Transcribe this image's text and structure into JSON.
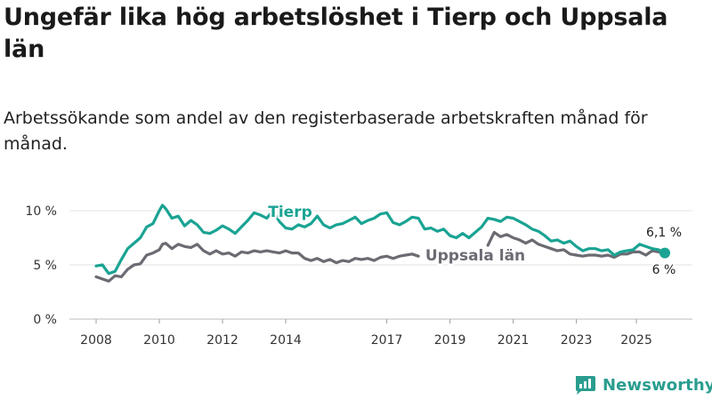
{
  "title": "Ungefär lika hög arbetslöshet i Tierp och Uppsala län",
  "subtitle": "Arbetssökande som andel av den registerbaserade arbetskraften månad för månad.",
  "brand": {
    "name": "Newsworthy",
    "color": "#2a9d8f"
  },
  "chart_data": {
    "type": "line",
    "title": "Ungefär lika hög arbetslöshet i Tierp och Uppsala län",
    "xlabel": "",
    "ylabel": "",
    "x_ticks": [
      "2008",
      "2010",
      "2012",
      "2014",
      "2017",
      "2019",
      "2021",
      "2023",
      "2025"
    ],
    "x_tick_values": [
      2008,
      2010,
      2012,
      2014,
      2017.2,
      2019.2,
      2021.2,
      2023.2,
      2025.1
    ],
    "y_ticks": [
      "0 %",
      "5 %",
      "10 %"
    ],
    "y_tick_values": [
      0,
      5,
      10
    ],
    "xlim": [
      2008,
      2026
    ],
    "ylim": [
      0,
      10
    ],
    "series": [
      {
        "name": "Tierp",
        "color": "#1aa393",
        "end_label": "6,1 %",
        "points": [
          [
            2008.0,
            4.9
          ],
          [
            2008.2,
            5.0
          ],
          [
            2008.4,
            4.2
          ],
          [
            2008.6,
            4.4
          ],
          [
            2008.8,
            5.5
          ],
          [
            2009.0,
            6.5
          ],
          [
            2009.2,
            7.0
          ],
          [
            2009.4,
            7.5
          ],
          [
            2009.6,
            8.5
          ],
          [
            2009.8,
            8.8
          ],
          [
            2010.0,
            10.0
          ],
          [
            2010.1,
            10.5
          ],
          [
            2010.2,
            10.2
          ],
          [
            2010.4,
            9.3
          ],
          [
            2010.6,
            9.5
          ],
          [
            2010.8,
            8.6
          ],
          [
            2011.0,
            9.1
          ],
          [
            2011.2,
            8.7
          ],
          [
            2011.4,
            8.0
          ],
          [
            2011.6,
            7.9
          ],
          [
            2011.8,
            8.2
          ],
          [
            2012.0,
            8.6
          ],
          [
            2012.2,
            8.3
          ],
          [
            2012.4,
            7.9
          ],
          [
            2012.6,
            8.5
          ],
          [
            2012.8,
            9.1
          ],
          [
            2013.0,
            9.8
          ],
          [
            2013.2,
            9.6
          ],
          [
            2013.4,
            9.3
          ],
          [
            2013.6,
            10.0
          ],
          [
            2013.8,
            9.0
          ],
          [
            2014.0,
            8.4
          ],
          [
            2014.2,
            8.3
          ],
          [
            2014.4,
            8.7
          ],
          [
            2014.6,
            8.5
          ],
          [
            2014.8,
            8.8
          ],
          [
            2015.0,
            9.5
          ],
          [
            2015.2,
            8.7
          ],
          [
            2015.4,
            8.4
          ],
          [
            2015.6,
            8.7
          ],
          [
            2015.8,
            8.8
          ],
          [
            2016.0,
            9.1
          ],
          [
            2016.2,
            9.4
          ],
          [
            2016.4,
            8.8
          ],
          [
            2016.6,
            9.1
          ],
          [
            2016.8,
            9.3
          ],
          [
            2017.0,
            9.7
          ],
          [
            2017.2,
            9.8
          ],
          [
            2017.4,
            8.9
          ],
          [
            2017.6,
            8.7
          ],
          [
            2017.8,
            9.0
          ],
          [
            2018.0,
            9.4
          ],
          [
            2018.2,
            9.3
          ],
          [
            2018.4,
            8.3
          ],
          [
            2018.6,
            8.4
          ],
          [
            2018.8,
            8.1
          ],
          [
            2019.0,
            8.3
          ],
          [
            2019.2,
            7.7
          ],
          [
            2019.4,
            7.5
          ],
          [
            2019.6,
            7.9
          ],
          [
            2019.8,
            7.5
          ],
          [
            2020.0,
            8.0
          ],
          [
            2020.2,
            8.5
          ],
          [
            2020.4,
            9.3
          ],
          [
            2020.6,
            9.2
          ],
          [
            2020.8,
            9.0
          ],
          [
            2021.0,
            9.4
          ],
          [
            2021.2,
            9.3
          ],
          [
            2021.4,
            9.0
          ],
          [
            2021.6,
            8.7
          ],
          [
            2021.8,
            8.3
          ],
          [
            2022.0,
            8.1
          ],
          [
            2022.2,
            7.7
          ],
          [
            2022.4,
            7.2
          ],
          [
            2022.6,
            7.3
          ],
          [
            2022.8,
            7.0
          ],
          [
            2023.0,
            7.2
          ],
          [
            2023.2,
            6.7
          ],
          [
            2023.4,
            6.3
          ],
          [
            2023.6,
            6.5
          ],
          [
            2023.8,
            6.5
          ],
          [
            2024.0,
            6.3
          ],
          [
            2024.2,
            6.4
          ],
          [
            2024.4,
            5.9
          ],
          [
            2024.6,
            6.2
          ],
          [
            2024.8,
            6.3
          ],
          [
            2025.0,
            6.4
          ],
          [
            2025.2,
            6.9
          ],
          [
            2025.4,
            6.7
          ],
          [
            2025.6,
            6.5
          ],
          [
            2025.8,
            6.4
          ],
          [
            2026.0,
            6.1
          ]
        ]
      },
      {
        "name": "Uppsala län",
        "color": "#6b6b73",
        "end_label": "6 %",
        "points": [
          [
            2008.0,
            3.9
          ],
          [
            2008.2,
            3.7
          ],
          [
            2008.4,
            3.5
          ],
          [
            2008.6,
            4.0
          ],
          [
            2008.8,
            3.9
          ],
          [
            2009.0,
            4.6
          ],
          [
            2009.2,
            5.0
          ],
          [
            2009.4,
            5.1
          ],
          [
            2009.6,
            5.9
          ],
          [
            2009.8,
            6.1
          ],
          [
            2010.0,
            6.4
          ],
          [
            2010.1,
            6.9
          ],
          [
            2010.2,
            7.0
          ],
          [
            2010.4,
            6.5
          ],
          [
            2010.6,
            6.9
          ],
          [
            2010.8,
            6.7
          ],
          [
            2011.0,
            6.6
          ],
          [
            2011.2,
            6.9
          ],
          [
            2011.4,
            6.3
          ],
          [
            2011.6,
            6.0
          ],
          [
            2011.8,
            6.3
          ],
          [
            2012.0,
            6.0
          ],
          [
            2012.2,
            6.1
          ],
          [
            2012.4,
            5.8
          ],
          [
            2012.6,
            6.2
          ],
          [
            2012.8,
            6.1
          ],
          [
            2013.0,
            6.3
          ],
          [
            2013.2,
            6.2
          ],
          [
            2013.4,
            6.3
          ],
          [
            2013.6,
            6.2
          ],
          [
            2013.8,
            6.1
          ],
          [
            2014.0,
            6.3
          ],
          [
            2014.2,
            6.1
          ],
          [
            2014.4,
            6.1
          ],
          [
            2014.6,
            5.6
          ],
          [
            2014.8,
            5.4
          ],
          [
            2015.0,
            5.6
          ],
          [
            2015.2,
            5.3
          ],
          [
            2015.4,
            5.5
          ],
          [
            2015.6,
            5.2
          ],
          [
            2015.8,
            5.4
          ],
          [
            2016.0,
            5.3
          ],
          [
            2016.2,
            5.6
          ],
          [
            2016.4,
            5.5
          ],
          [
            2016.6,
            5.6
          ],
          [
            2016.8,
            5.4
          ],
          [
            2017.0,
            5.7
          ],
          [
            2017.2,
            5.8
          ],
          [
            2017.4,
            5.6
          ],
          [
            2017.6,
            5.8
          ],
          [
            2017.8,
            5.9
          ],
          [
            2018.0,
            6.0
          ],
          [
            2018.2,
            5.8
          ],
          [
            2018.4,
            null
          ],
          [
            2020.4,
            6.8
          ],
          [
            2020.6,
            8.0
          ],
          [
            2020.8,
            7.6
          ],
          [
            2021.0,
            7.8
          ],
          [
            2021.2,
            7.5
          ],
          [
            2021.4,
            7.3
          ],
          [
            2021.6,
            7.0
          ],
          [
            2021.8,
            7.3
          ],
          [
            2022.0,
            6.9
          ],
          [
            2022.2,
            6.7
          ],
          [
            2022.4,
            6.5
          ],
          [
            2022.6,
            6.3
          ],
          [
            2022.8,
            6.4
          ],
          [
            2023.0,
            6.0
          ],
          [
            2023.2,
            5.9
          ],
          [
            2023.4,
            5.8
          ],
          [
            2023.6,
            5.9
          ],
          [
            2023.8,
            5.9
          ],
          [
            2024.0,
            5.8
          ],
          [
            2024.2,
            5.9
          ],
          [
            2024.4,
            5.7
          ],
          [
            2024.6,
            6.0
          ],
          [
            2024.8,
            6.0
          ],
          [
            2025.0,
            6.2
          ],
          [
            2025.2,
            6.2
          ],
          [
            2025.4,
            5.9
          ],
          [
            2025.6,
            6.3
          ],
          [
            2025.8,
            6.2
          ],
          [
            2026.0,
            6.0
          ]
        ]
      }
    ],
    "annotations": [
      {
        "text": "Tierp",
        "series": "Tierp",
        "at_x": 2014.0,
        "at_y": 9.6
      },
      {
        "text": "Uppsala län",
        "series": "Uppsala län",
        "at_x": 2019.5,
        "at_y": 6.0
      }
    ],
    "grid": true,
    "legend": "inline labels"
  }
}
